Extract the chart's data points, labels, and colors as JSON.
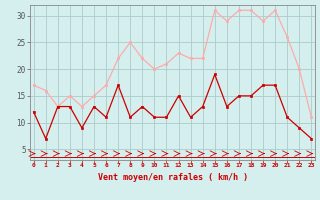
{
  "x": [
    0,
    1,
    2,
    3,
    4,
    5,
    6,
    7,
    8,
    9,
    10,
    11,
    12,
    13,
    14,
    15,
    16,
    17,
    18,
    19,
    20,
    21,
    22,
    23
  ],
  "vent_moyen": [
    12,
    7,
    13,
    13,
    9,
    13,
    11,
    17,
    11,
    13,
    11,
    11,
    15,
    11,
    13,
    19,
    13,
    15,
    15,
    17,
    17,
    11,
    9,
    7
  ],
  "rafales": [
    17,
    16,
    13,
    15,
    13,
    15,
    17,
    22,
    25,
    22,
    20,
    21,
    23,
    22,
    22,
    31,
    29,
    31,
    31,
    29,
    31,
    26,
    20,
    11
  ],
  "color_moyen": "#cc0000",
  "color_rafales": "#ffaaaa",
  "bg_color": "#d5efef",
  "grid_color": "#aacccc",
  "xlabel": "Vent moyen/en rafales ( km/h )",
  "ylabel_ticks": [
    5,
    10,
    15,
    20,
    25,
    30
  ],
  "xlim": [
    -0.3,
    23.3
  ],
  "ylim": [
    3,
    32
  ]
}
